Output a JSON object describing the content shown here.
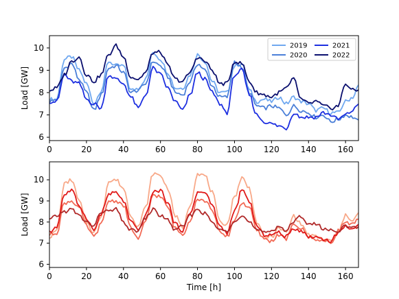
{
  "chart_data": [
    {
      "type": "line",
      "panel": "top",
      "title": "",
      "xlabel": "",
      "ylabel": "Load [GW]",
      "xlim": [
        0,
        167
      ],
      "ylim": [
        5.85,
        10.55
      ],
      "xticks": [
        0,
        20,
        40,
        60,
        80,
        100,
        120,
        140,
        160
      ],
      "yticks": [
        6,
        7,
        8,
        9,
        10
      ],
      "grid": false,
      "legend": {
        "position": "top-right",
        "columns": 2
      },
      "keypoints": [
        0,
        4,
        8,
        12,
        16,
        20,
        24,
        28,
        32,
        36,
        40,
        44,
        48,
        52,
        56,
        60,
        64,
        68,
        72,
        76,
        80,
        84,
        88,
        92,
        96,
        100,
        104,
        108,
        112,
        116,
        120,
        124,
        128,
        132,
        136,
        140,
        144,
        148,
        152,
        156,
        160,
        164,
        167
      ],
      "series": [
        {
          "name": "2019",
          "color": "#6fa8f0",
          "values": [
            7.7,
            7.7,
            9.5,
            9.6,
            9.0,
            8.4,
            7.5,
            8.1,
            9.4,
            9.2,
            9.2,
            8.1,
            8.2,
            8.6,
            9.8,
            9.5,
            8.9,
            8.2,
            8.2,
            8.8,
            9.7,
            9.4,
            8.5,
            8.0,
            8.0,
            9.2,
            9.3,
            8.1,
            7.6,
            7.7,
            7.6,
            7.8,
            7.5,
            7.8,
            7.6,
            7.5,
            7.2,
            7.3,
            7.1,
            7.1,
            7.6,
            7.8,
            8.3
          ]
        },
        {
          "name": "2020",
          "color": "#4a7fd8",
          "values": [
            7.6,
            7.7,
            9.1,
            9.3,
            8.6,
            8.0,
            7.2,
            7.9,
            9.1,
            9.2,
            8.9,
            8.0,
            8.1,
            8.4,
            9.4,
            9.2,
            8.7,
            8.0,
            7.9,
            8.5,
            9.3,
            9.0,
            8.3,
            7.8,
            7.8,
            9.4,
            9.1,
            8.0,
            7.4,
            7.3,
            7.4,
            7.3,
            7.0,
            7.4,
            7.2,
            7.1,
            6.9,
            7.0,
            6.7,
            6.8,
            7.0,
            6.9,
            6.7
          ]
        },
        {
          "name": "2021",
          "color": "#1c2ee0",
          "values": [
            7.6,
            7.6,
            8.8,
            8.5,
            8.4,
            7.7,
            7.5,
            7.3,
            8.8,
            8.6,
            8.4,
            7.8,
            7.3,
            7.9,
            9.1,
            8.8,
            8.2,
            7.6,
            7.2,
            7.9,
            8.9,
            8.6,
            8.0,
            7.5,
            7.1,
            8.8,
            9.0,
            7.9,
            7.0,
            6.7,
            6.6,
            6.5,
            6.4,
            7.1,
            6.9,
            6.9,
            6.9,
            7.1,
            7.0,
            6.8,
            7.0,
            7.2,
            7.5
          ]
        },
        {
          "name": "2022",
          "color": "#0a0f6e",
          "values": [
            8.1,
            8.2,
            8.8,
            9.4,
            9.6,
            8.8,
            8.5,
            8.8,
            9.7,
            10.1,
            9.6,
            8.7,
            8.6,
            8.9,
            9.8,
            9.8,
            9.2,
            8.6,
            8.5,
            8.9,
            9.6,
            9.4,
            9.0,
            8.4,
            8.4,
            9.4,
            9.3,
            8.5,
            8.0,
            7.9,
            7.8,
            8.0,
            8.2,
            8.6,
            7.7,
            7.5,
            7.6,
            7.4,
            7.3,
            7.4,
            8.4,
            8.1,
            8.1
          ]
        }
      ]
    },
    {
      "type": "line",
      "panel": "bottom",
      "title": "",
      "xlabel": "Time [h]",
      "ylabel": "Load [GW]",
      "xlim": [
        0,
        167
      ],
      "ylim": [
        5.85,
        10.85
      ],
      "xticks": [
        0,
        20,
        40,
        60,
        80,
        100,
        120,
        140,
        160
      ],
      "yticks": [
        6,
        7,
        8,
        9,
        10
      ],
      "grid": false,
      "legend": null,
      "keypoints": [
        0,
        4,
        8,
        12,
        16,
        20,
        24,
        28,
        32,
        36,
        40,
        44,
        48,
        52,
        56,
        60,
        64,
        68,
        72,
        76,
        80,
        84,
        88,
        92,
        96,
        100,
        104,
        108,
        112,
        116,
        120,
        124,
        128,
        132,
        136,
        140,
        144,
        148,
        152,
        156,
        160,
        164,
        167
      ],
      "series": [
        {
          "color": "#f8a888",
          "values": [
            7.3,
            7.6,
            9.8,
            10.0,
            9.0,
            8.0,
            7.5,
            8.3,
            9.9,
            10.0,
            9.6,
            8.3,
            7.8,
            8.7,
            10.3,
            10.2,
            9.6,
            8.3,
            7.7,
            8.8,
            10.3,
            10.2,
            9.4,
            8.0,
            7.9,
            9.2,
            10.1,
            9.6,
            8.0,
            7.3,
            7.3,
            7.7,
            7.5,
            8.3,
            7.9,
            7.4,
            7.3,
            7.2,
            7.1,
            7.5,
            8.3,
            8.1,
            8.4
          ]
        },
        {
          "color": "#f26a55",
          "values": [
            7.4,
            7.5,
            8.9,
            9.0,
            8.7,
            7.8,
            7.3,
            7.9,
            9.0,
            9.0,
            8.8,
            7.7,
            7.2,
            8.0,
            9.3,
            9.2,
            8.7,
            7.7,
            7.4,
            8.1,
            9.1,
            9.0,
            8.6,
            7.5,
            7.3,
            8.1,
            8.9,
            8.7,
            7.6,
            7.2,
            7.1,
            7.4,
            7.2,
            7.9,
            7.7,
            7.3,
            7.2,
            7.1,
            7.0,
            7.6,
            8.0,
            7.9,
            8.1
          ]
        },
        {
          "color": "#e01818",
          "values": [
            7.5,
            7.8,
            9.3,
            9.5,
            8.8,
            8.2,
            7.6,
            8.4,
            9.3,
            9.4,
            9.0,
            8.0,
            7.6,
            8.3,
            9.4,
            9.5,
            8.9,
            7.9,
            7.6,
            8.4,
            9.4,
            9.4,
            8.8,
            7.8,
            7.5,
            8.5,
            9.5,
            9.0,
            7.8,
            7.4,
            7.4,
            7.5,
            7.3,
            7.7,
            7.6,
            7.3,
            7.3,
            7.2,
            7.1,
            7.5,
            7.8,
            7.7,
            7.8
          ]
        },
        {
          "color": "#b02828",
          "values": [
            8.1,
            8.3,
            8.5,
            8.6,
            8.3,
            8.0,
            7.8,
            8.5,
            8.5,
            8.6,
            8.0,
            7.6,
            7.6,
            8.2,
            8.6,
            8.3,
            8.1,
            7.6,
            7.8,
            8.3,
            8.6,
            8.4,
            8.0,
            7.6,
            7.6,
            8.1,
            8.3,
            8.0,
            7.6,
            7.5,
            7.6,
            7.8,
            7.6,
            8.0,
            8.3,
            7.9,
            7.9,
            7.7,
            7.6,
            7.6,
            7.8,
            7.7,
            7.8
          ]
        }
      ]
    }
  ]
}
